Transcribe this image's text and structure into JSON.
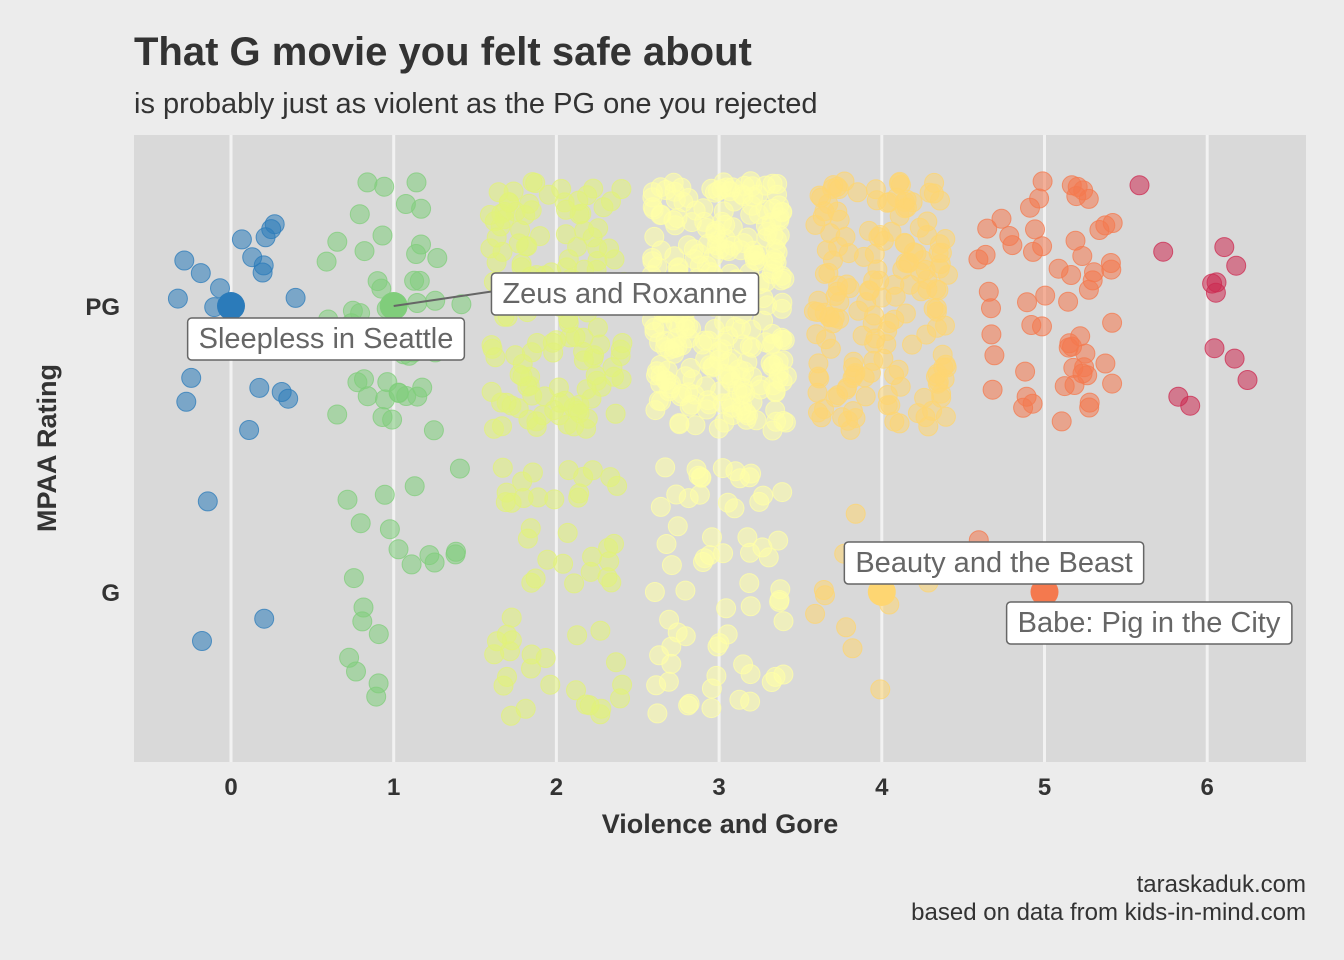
{
  "title": "That G movie you felt safe about",
  "subtitle": "is probably just as violent as the PG one you rejected",
  "caption": [
    "taraskaduk.com",
    "based on data from kids-in-mind.com"
  ],
  "chart_data": {
    "type": "scatter",
    "jitter": true,
    "xlabel": "Violence and Gore",
    "ylabel": "MPAA Rating",
    "x_ticks": [
      0,
      1,
      2,
      3,
      4,
      5,
      6
    ],
    "y_categories": [
      "G",
      "PG"
    ],
    "grid": "vertical major only",
    "legend": "none",
    "colors_by_violence": {
      "0": "#2b7bba",
      "1": "#80cd7b",
      "2": "#e2f27a",
      "3": "#ffffa8",
      "4": "#fed672",
      "5": "#f4794e",
      "6": "#cc2a50"
    },
    "approx_counts": {
      "PG": {
        "0": 20,
        "1": 45,
        "2": 150,
        "3": 280,
        "4": 170,
        "5": 60,
        "6": 12
      },
      "G": {
        "0": 3,
        "1": 20,
        "2": 55,
        "3": 65,
        "4": 10,
        "5": 2
      }
    },
    "highlighted": [
      {
        "label": "Sleepless in Seattle",
        "rating": "PG",
        "violence": 0
      },
      {
        "label": "Zeus and Roxanne",
        "rating": "PG",
        "violence": 1
      },
      {
        "label": "Beauty and the Beast",
        "rating": "G",
        "violence": 4
      },
      {
        "label": "Babe: Pig in the City",
        "rating": "G",
        "violence": 5
      }
    ]
  }
}
